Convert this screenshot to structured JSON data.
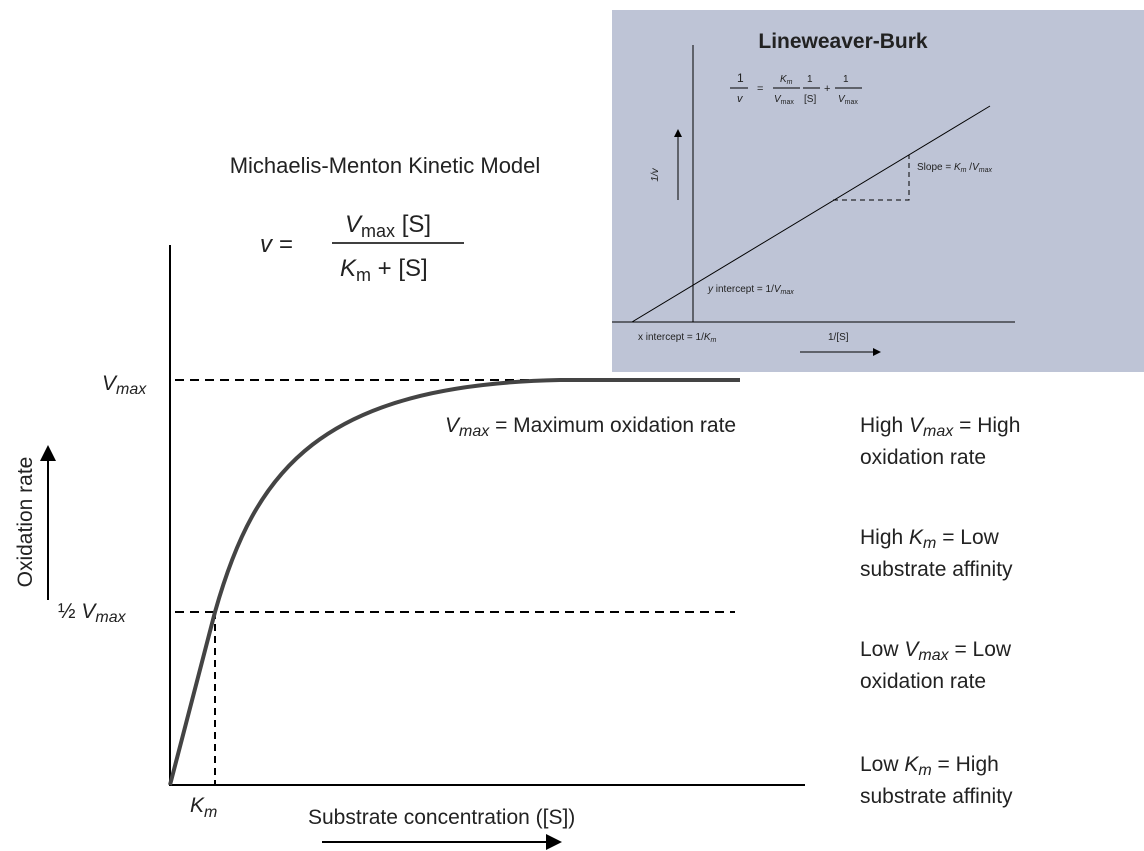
{
  "main": {
    "title": "Michaelis-Menton Kinetic Model",
    "equation": {
      "lhs": "v =",
      "num_sym": "V",
      "num_sub": "max",
      "num_rest": " [S]",
      "den_sym": "K",
      "den_sub": "m",
      "den_rest": " + [S]"
    },
    "y_axis_label": "Oxidation rate",
    "x_axis_label": "Substrate concentration ([S])",
    "vmax_label": {
      "sym": "V",
      "sub": "max"
    },
    "half_vmax_label": {
      "prefix": "½ ",
      "sym": "V",
      "sub": "max"
    },
    "km_label": {
      "sym": "K",
      "sub": "m"
    },
    "vmax_note": {
      "sym": "V",
      "sub": "max",
      "text": " = Maximum oxidation rate"
    }
  },
  "notes": [
    {
      "lead": "High ",
      "sym": "V",
      "sub": "max",
      "rest": " = High",
      "line2": "oxidation rate"
    },
    {
      "lead": "High ",
      "sym": "K",
      "sub": "m",
      "rest": " = Low",
      "line2": "substrate affinity"
    },
    {
      "lead": "Low ",
      "sym": "V",
      "sub": "max",
      "rest": " = Low",
      "line2": "oxidation rate"
    },
    {
      "lead": "Low ",
      "sym": "K",
      "sub": "m",
      "rest": " = High",
      "line2": "substrate affinity"
    }
  ],
  "inset": {
    "title": "Lineweaver-Burk",
    "equation": {
      "lhs_num": "1",
      "lhs_den": "v",
      "eq": "=",
      "k": "K",
      "k_sub": "m",
      "v": "V",
      "v_sub": "max",
      "one": "1",
      "s": "[S]",
      "plus": "+",
      "one2": "1",
      "v2": "V",
      "v2_sub": "max"
    },
    "y_axis_label": "1/v",
    "x_axis_label": "1/[S]",
    "slope": {
      "text": "Slope = ",
      "k": "K",
      "k_sub": "m",
      "slash": " /",
      "v": "V",
      "v_sub": "max"
    },
    "y_intercept": {
      "lead": "y",
      "text": " intercept = 1/",
      "v": "V",
      "v_sub": "max"
    },
    "x_intercept": {
      "text": "x intercept = 1/",
      "k": "K",
      "k_sub": "m"
    }
  }
}
